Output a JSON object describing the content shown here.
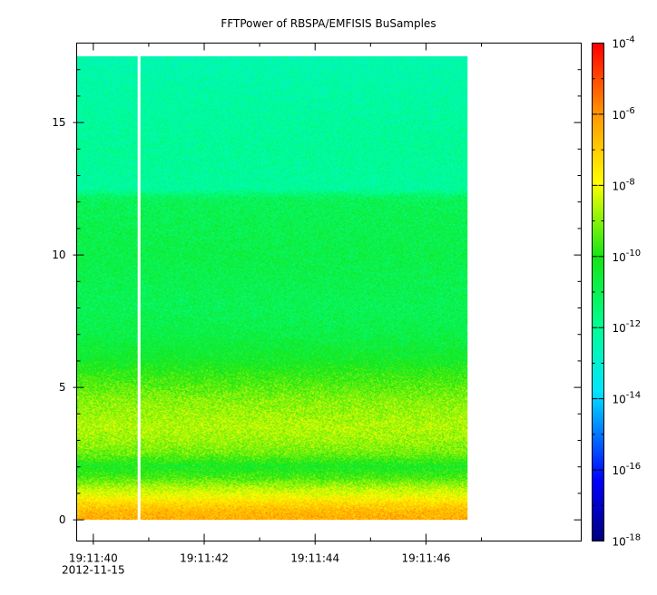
{
  "chart_data": {
    "type": "heatmap",
    "title": "FFTPower of RBSPA/EMFISIS  BuSamples",
    "xlabel": "",
    "ylabel": "",
    "x_axis": {
      "type": "time",
      "range": [
        "19:11:39.70",
        "19:11:48.80"
      ],
      "major_ticks": [
        "19:11:40",
        "19:11:42",
        "19:11:44",
        "19:11:46"
      ],
      "minor_ticks": [
        "19:11:41",
        "19:11:43",
        "19:11:45",
        "19:11:47"
      ],
      "date_label": "2012-11-15"
    },
    "y_axis": {
      "range": [
        -0.8,
        18.0
      ],
      "ticks": [
        0,
        5,
        10,
        15
      ],
      "minor_step": 1
    },
    "colorbar": {
      "scale": "log",
      "range": [
        1e-18,
        0.0001
      ],
      "ticks": [
        {
          "value": -18,
          "base": "10",
          "exp": "-18"
        },
        {
          "value": -16,
          "base": "10",
          "exp": "-16"
        },
        {
          "value": -14,
          "base": "10",
          "exp": "-14"
        },
        {
          "value": -12,
          "base": "10",
          "exp": "-12"
        },
        {
          "value": -10,
          "base": "10",
          "exp": "-10"
        },
        {
          "value": -8,
          "base": "10",
          "exp": "-8"
        },
        {
          "value": -6,
          "base": "10",
          "exp": "-6"
        },
        {
          "value": -4,
          "base": "10",
          "exp": "-4"
        }
      ],
      "colormap": "rainbow"
    },
    "data_extent": {
      "time_start": "19:11:39.70",
      "time_end": "19:11:46.75",
      "freq_min": 0.0,
      "freq_max": 17.5
    },
    "data_gap": {
      "time_start": "19:11:40.80",
      "time_end": "19:11:40.85"
    },
    "power_profile": [
      {
        "freq": 0.0,
        "log_power": -6.4
      },
      {
        "freq": 0.3,
        "log_power": -6.6
      },
      {
        "freq": 0.6,
        "log_power": -7.2
      },
      {
        "freq": 0.9,
        "log_power": -8.0
      },
      {
        "freq": 1.2,
        "log_power": -8.6
      },
      {
        "freq": 1.6,
        "log_power": -9.6
      },
      {
        "freq": 2.0,
        "log_power": -10.2
      },
      {
        "freq": 2.5,
        "log_power": -9.2
      },
      {
        "freq": 3.0,
        "log_power": -8.8
      },
      {
        "freq": 3.5,
        "log_power": -8.6
      },
      {
        "freq": 4.0,
        "log_power": -8.8
      },
      {
        "freq": 4.5,
        "log_power": -9.0
      },
      {
        "freq": 5.0,
        "log_power": -9.4
      },
      {
        "freq": 5.5,
        "log_power": -9.8
      },
      {
        "freq": 6.0,
        "log_power": -10.3
      },
      {
        "freq": 7.0,
        "log_power": -10.8
      },
      {
        "freq": 8.0,
        "log_power": -11.0
      },
      {
        "freq": 9.0,
        "log_power": -10.9
      },
      {
        "freq": 10.0,
        "log_power": -10.8
      },
      {
        "freq": 11.0,
        "log_power": -10.9
      },
      {
        "freq": 12.0,
        "log_power": -11.0
      },
      {
        "freq": 12.2,
        "log_power": -11.2
      },
      {
        "freq": 12.5,
        "log_power": -12.1
      },
      {
        "freq": 14.0,
        "log_power": -12.0
      },
      {
        "freq": 16.0,
        "log_power": -12.2
      },
      {
        "freq": 17.5,
        "log_power": -12.4
      }
    ]
  }
}
